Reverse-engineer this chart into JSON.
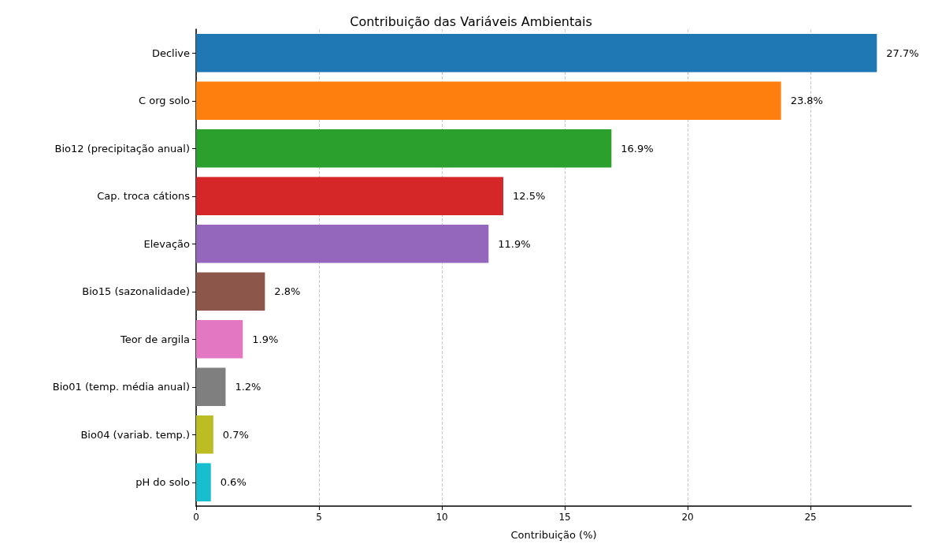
{
  "chart_data": {
    "type": "bar",
    "orientation": "horizontal",
    "title": "Contribuição das Variáveis Ambientais",
    "xlabel": "Contribuição (%)",
    "categories": [
      "Declive",
      "C org solo",
      "Bio12 (precipitação anual)",
      "Cap. troca cátions",
      "Elevação",
      "Bio15 (sazonalidade)",
      "Teor de argila",
      "Bio01 (temp. média anual)",
      "Bio04 (variab. temp.)",
      "pH do solo"
    ],
    "values": [
      27.7,
      23.8,
      16.9,
      12.5,
      11.9,
      2.8,
      1.9,
      1.2,
      0.7,
      0.6
    ],
    "colors": [
      "#1f77b4",
      "#ff7f0e",
      "#2ca02c",
      "#d62728",
      "#9467bd",
      "#8c564b",
      "#e377c2",
      "#7f7f7f",
      "#bcbd22",
      "#17becf"
    ],
    "value_labels": [
      "27.7%",
      "23.8%",
      "16.9%",
      "12.5%",
      "11.9%",
      "2.8%",
      "1.9%",
      "1.2%",
      "0.7%",
      "0.6%"
    ],
    "xlim": [
      0,
      29.1
    ],
    "xticks": [
      0,
      5,
      10,
      15,
      20,
      25
    ],
    "grid": "x"
  }
}
